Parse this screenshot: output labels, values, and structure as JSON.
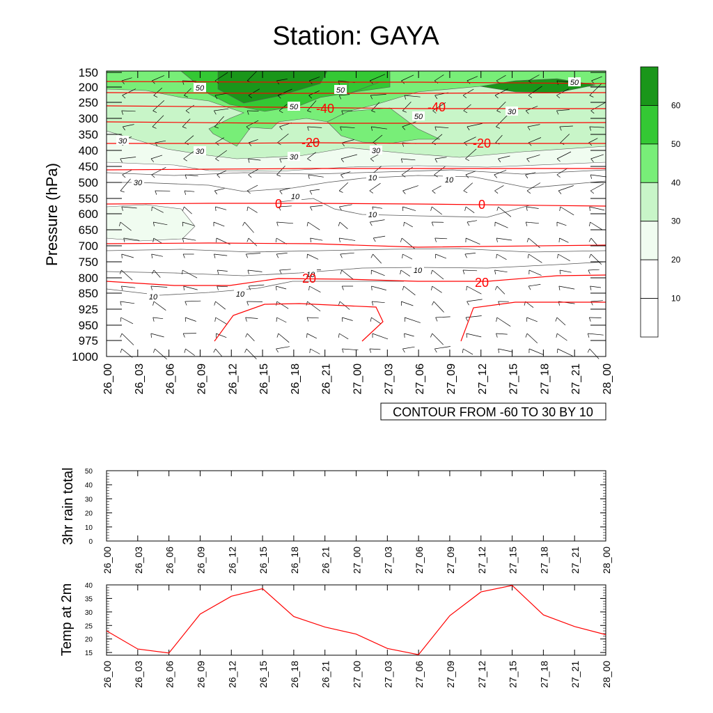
{
  "title": "Station: GAYA",
  "time_labels": [
    "26_00",
    "26_03",
    "26_06",
    "26_09",
    "26_12",
    "26_15",
    "26_18",
    "26_21",
    "27_00",
    "27_03",
    "27_06",
    "27_09",
    "27_12",
    "27_15",
    "27_18",
    "27_21",
    "28_00"
  ],
  "colors": {
    "temp_line": "#ff0000",
    "rh_10": "#ffffff",
    "rh_20": "#f0fcf0",
    "rh_30": "#c8f5c8",
    "rh_40": "#78ee78",
    "rh_50": "#34c834",
    "rh_60": "#1a961a"
  },
  "chart_data": [
    {
      "type": "heatmap",
      "title": "Station: GAYA",
      "ylabel": "Pressure (hPa)",
      "y_tick_labels": [
        "150",
        "200",
        "250",
        "300",
        "350",
        "400",
        "450",
        "500",
        "550",
        "600",
        "650",
        "700",
        "750",
        "800",
        "850",
        "925",
        "950",
        "975",
        "1000"
      ],
      "x_tick_labels": [
        "26_00",
        "26_03",
        "26_06",
        "26_09",
        "26_12",
        "26_15",
        "26_18",
        "26_21",
        "27_00",
        "27_03",
        "27_06",
        "27_09",
        "27_12",
        "27_15",
        "27_18",
        "27_21",
        "28_00"
      ],
      "colorbar_labels": [
        "10",
        "20",
        "30",
        "40",
        "50",
        "60"
      ],
      "humidity_contour_labels": [
        "50",
        "50",
        "50",
        "50",
        "50",
        "30",
        "30",
        "30",
        "30",
        "30",
        "30",
        "10",
        "10",
        "10",
        "10",
        "10",
        "10",
        "10",
        "10"
      ],
      "temperature_contour_labels": [
        "-40",
        "-40",
        "-20",
        "-20",
        "0",
        "0",
        "20",
        "20"
      ],
      "info_label": "CONTOUR FROM -60 TO 30 BY 10",
      "wind_barbs": true
    },
    {
      "type": "bar",
      "ylabel": "3hr rain total",
      "ylim": [
        0,
        50
      ],
      "y_tick_labels": [
        "0",
        "10",
        "20",
        "30",
        "40",
        "50"
      ],
      "x_tick_labels": [
        "26_00",
        "26_03",
        "26_06",
        "26_09",
        "26_12",
        "26_15",
        "26_18",
        "26_21",
        "27_00",
        "27_03",
        "27_06",
        "27_09",
        "27_12",
        "27_15",
        "27_18",
        "27_21",
        "28_00"
      ],
      "values": [
        0,
        0,
        0,
        0,
        0,
        0,
        0,
        0,
        0,
        0,
        0,
        0,
        0,
        0,
        0,
        0,
        0
      ]
    },
    {
      "type": "line",
      "ylabel": "Temp at 2m",
      "ylim": [
        14,
        40
      ],
      "y_tick_labels": [
        "15",
        "20",
        "25",
        "30",
        "35",
        "40"
      ],
      "x_tick_labels": [
        "26_00",
        "26_03",
        "26_06",
        "26_09",
        "26_12",
        "26_15",
        "26_18",
        "26_21",
        "27_00",
        "27_03",
        "27_06",
        "27_09",
        "27_12",
        "27_15",
        "27_18",
        "27_21",
        "28_00"
      ],
      "values": [
        23,
        16.3,
        14.8,
        29.2,
        35.8,
        38.6,
        28.3,
        24.4,
        21.8,
        16.5,
        14.2,
        28.6,
        37.4,
        39.8,
        28.9,
        24.6,
        21.6
      ]
    }
  ]
}
